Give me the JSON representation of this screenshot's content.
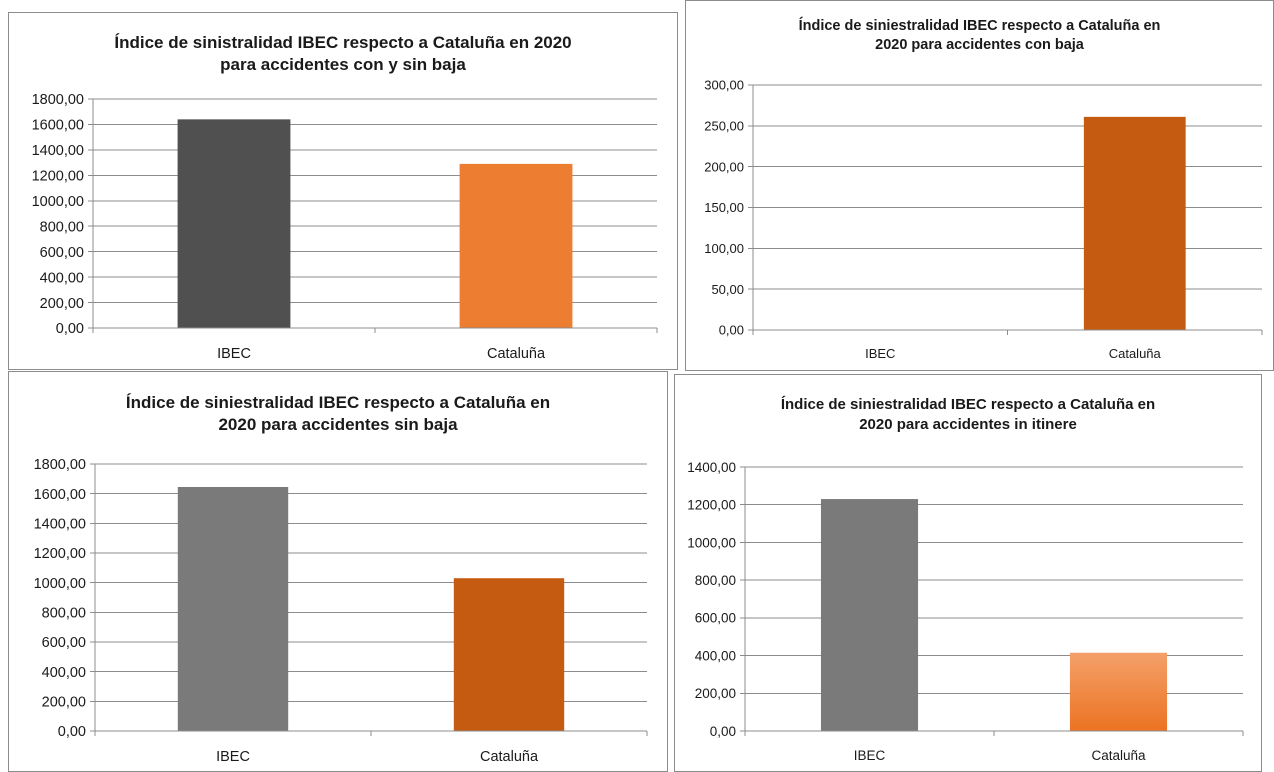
{
  "colors": {
    "grid": "#8c8c8c",
    "tick_text": "#1a1a1a",
    "dark_gray": "#505050",
    "mid_gray": "#7a7a7a",
    "orange_light": "#ed7d31",
    "orange_dark": "#c55a11",
    "orange_gradient_top": "#f4a06a",
    "orange_gradient_bottom": "#ec7322"
  },
  "chart_data": [
    {
      "type": "bar",
      "title_line1": "Índice de sinistralidad IBEC respecto a Cataluña en 2020",
      "title_line2": "para accidentes con y sin baja",
      "categories": [
        "IBEC",
        "Cataluña"
      ],
      "values": [
        1640,
        1290
      ],
      "bar_colors": [
        "#505050",
        "#ed7d31"
      ],
      "ylim": [
        0,
        1800
      ],
      "ytick_step": 200,
      "ytick_labels": [
        "0,00",
        "200,00",
        "400,00",
        "600,00",
        "800,00",
        "1000,00",
        "1200,00",
        "1400,00",
        "1600,00",
        "1800,00"
      ],
      "grid": true,
      "xlabel": "",
      "ylabel": ""
    },
    {
      "type": "bar",
      "title_line1": "Índice de siniestralidad IBEC respecto a Cataluña en",
      "title_line2": "2020 para accidentes con baja",
      "categories": [
        "IBEC",
        "Cataluña"
      ],
      "values": [
        0,
        261
      ],
      "bar_colors": [
        "#7a7a7a",
        "#c55a11"
      ],
      "ylim": [
        0,
        300
      ],
      "ytick_step": 50,
      "ytick_labels": [
        "0,00",
        "50,00",
        "100,00",
        "150,00",
        "200,00",
        "250,00",
        "300,00"
      ],
      "grid": true,
      "xlabel": "",
      "ylabel": ""
    },
    {
      "type": "bar",
      "title_line1": "Índice de siniestralidad IBEC respecto a Cataluña en",
      "title_line2": "2020 para accidentes sin baja",
      "categories": [
        "IBEC",
        "Cataluña"
      ],
      "values": [
        1645,
        1030
      ],
      "bar_colors": [
        "#7a7a7a",
        "#c55a11"
      ],
      "ylim": [
        0,
        1800
      ],
      "ytick_step": 200,
      "ytick_labels": [
        "0,00",
        "200,00",
        "400,00",
        "600,00",
        "800,00",
        "1000,00",
        "1200,00",
        "1400,00",
        "1600,00",
        "1800,00"
      ],
      "grid": true,
      "xlabel": "",
      "ylabel": ""
    },
    {
      "type": "bar",
      "title_line1": "Índice de siniestralidad IBEC respecto a Cataluña en",
      "title_line2": "2020 para accidentes in itinere",
      "categories": [
        "IBEC",
        "Cataluña"
      ],
      "values": [
        1230,
        415
      ],
      "bar_colors": [
        "#7a7a7a",
        "gradient-orange"
      ],
      "ylim": [
        0,
        1400
      ],
      "ytick_step": 200,
      "ytick_labels": [
        "0,00",
        "200,00",
        "400,00",
        "600,00",
        "800,00",
        "1000,00",
        "1200,00",
        "1400,00"
      ],
      "grid": true,
      "xlabel": "",
      "ylabel": ""
    }
  ]
}
